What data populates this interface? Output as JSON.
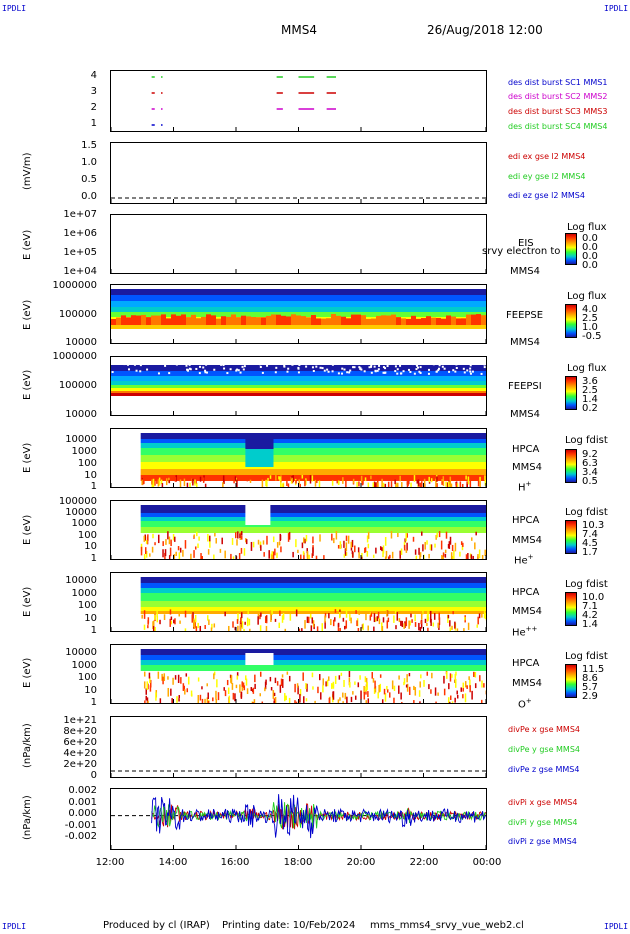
{
  "corners": {
    "tl": "IPDLI",
    "tr": "IPDLI",
    "bl": "IPDLI",
    "br": "IPDLI"
  },
  "header": {
    "title": "MMS4",
    "datetime": "26/Aug/2018 12:00"
  },
  "footer": {
    "produced": "Produced by cl (IRAP)",
    "printing": "Printing date: 10/Feb/2024",
    "file": "mms_mms4_srvy_vue_web2.cl"
  },
  "colors": {
    "red": "#cc0000",
    "green": "#22cc22",
    "blue": "#0000cc",
    "magenta": "#cc00cc",
    "spec_red": "#cc0000",
    "spec_blue": "#1a1aa0"
  },
  "chart_data": [
    {
      "type": "scatter",
      "id": "burst",
      "yticks": [
        "4",
        "3",
        "2",
        "1"
      ],
      "legend": [
        {
          "text": "des dist burst SC1 MMS1",
          "color": "#0000cc"
        },
        {
          "text": "des dist burst SC2 MMS2",
          "color": "#cc00cc"
        },
        {
          "text": "des dist burst SC3 MMS3",
          "color": "#cc0000"
        },
        {
          "text": "des dist burst SC4 MMS4",
          "color": "#22cc22"
        }
      ],
      "segments": [
        {
          "sc": 4,
          "t": [
            13.3,
            13.4,
            13.6,
            13.65,
            17.3,
            17.5,
            18.0,
            18.5,
            18.9,
            19.2
          ]
        },
        {
          "sc": 3,
          "t": [
            13.3,
            13.4,
            13.6,
            13.65,
            17.3,
            17.5,
            18.0,
            18.5,
            18.9,
            19.2
          ]
        },
        {
          "sc": 2,
          "t": [
            13.3,
            13.4,
            13.6,
            13.65,
            17.3,
            17.5,
            18.0,
            18.5,
            18.9,
            19.2
          ]
        },
        {
          "sc": 1,
          "t": [
            13.3,
            13.4,
            13.6,
            13.65
          ]
        }
      ]
    },
    {
      "type": "line",
      "id": "edi",
      "ylabel": "(mV/m)",
      "yticks": [
        "1.5",
        "1.0",
        "0.5",
        "0.0"
      ],
      "ylim": [
        0,
        1.5
      ],
      "legend": [
        {
          "text": "edi ex gse l2 MMS4",
          "color": "#cc0000"
        },
        {
          "text": "edi ey gse l2 MMS4",
          "color": "#22cc22"
        },
        {
          "text": "edi ez gse l2 MMS4",
          "color": "#0000cc"
        }
      ]
    },
    {
      "type": "heatmap",
      "id": "eis",
      "ylabel": "E (eV)",
      "yticks": [
        "1e+07",
        "1e+06",
        "1e+05",
        "1e+04"
      ],
      "instrument": [
        "EIS",
        "MMS4"
      ],
      "overlay": "srvy electron to",
      "cbar_title": "Log flux",
      "cbar_values": [
        "0.0",
        "0.0",
        "0.0",
        "0.0"
      ]
    },
    {
      "type": "heatmap",
      "id": "feepse",
      "ylabel": "E (eV)",
      "yticks": [
        "1000000",
        "100000",
        "10000"
      ],
      "instrument": [
        "FEEPSE",
        "MMS4"
      ],
      "cbar_title": "Log flux",
      "cbar_values": [
        "4.0",
        "2.5",
        "1.0",
        "-0.5"
      ]
    },
    {
      "type": "heatmap",
      "id": "feepsi",
      "ylabel": "E (eV)",
      "yticks": [
        "1000000",
        "100000",
        "10000"
      ],
      "instrument": [
        "FEEPSI",
        "MMS4"
      ],
      "cbar_title": "Log flux",
      "cbar_values": [
        "3.6",
        "2.5",
        "1.4",
        "0.2"
      ]
    },
    {
      "type": "heatmap",
      "id": "hpca_h",
      "ylabel": "E (eV)",
      "yticks": [
        "10000",
        "1000",
        "100",
        "10",
        "1"
      ],
      "instrument": [
        "HPCA",
        "MMS4"
      ],
      "species": "H",
      "species_sup": "+",
      "cbar_title": "Log fdist",
      "cbar_values": [
        "9.2",
        "6.3",
        "3.4",
        "0.5"
      ]
    },
    {
      "type": "heatmap",
      "id": "hpca_he1",
      "ylabel": "E (eV)",
      "yticks": [
        "100000",
        "10000",
        "1000",
        "100",
        "10",
        "1"
      ],
      "instrument": [
        "HPCA",
        "MMS4"
      ],
      "species": "He",
      "species_sup": "+",
      "cbar_title": "Log fdist",
      "cbar_values": [
        "10.3",
        "7.4",
        "4.5",
        "1.7"
      ]
    },
    {
      "type": "heatmap",
      "id": "hpca_he2",
      "ylabel": "E (eV)",
      "yticks": [
        "10000",
        "1000",
        "100",
        "10",
        "1"
      ],
      "instrument": [
        "HPCA",
        "MMS4"
      ],
      "species": "He",
      "species_sup": "++",
      "cbar_title": "Log fdist",
      "cbar_values": [
        "10.0",
        "7.1",
        "4.2",
        "1.4"
      ]
    },
    {
      "type": "heatmap",
      "id": "hpca_o",
      "ylabel": "E (eV)",
      "yticks": [
        "10000",
        "1000",
        "100",
        "10",
        "1"
      ],
      "instrument": [
        "HPCA",
        "MMS4"
      ],
      "species": "O",
      "species_sup": "+",
      "cbar_title": "Log fdist",
      "cbar_values": [
        "11.5",
        "8.6",
        "5.7",
        "2.9"
      ]
    },
    {
      "type": "line",
      "id": "divpe",
      "ylabel": "(nPa/km)",
      "yticks": [
        "1e+21",
        "8e+20",
        "6e+20",
        "4e+20",
        "2e+20",
        "0"
      ],
      "legend": [
        {
          "text": "divPe x gse MMS4",
          "color": "#cc0000"
        },
        {
          "text": "divPe y gse MMS4",
          "color": "#22cc22"
        },
        {
          "text": "divPe z gse MMS4",
          "color": "#0000cc"
        }
      ]
    },
    {
      "type": "line",
      "id": "divpi",
      "ylabel": "(nPa/km)",
      "yticks": [
        "0.002",
        "0.001",
        "0.000",
        "-0.001",
        "-0.002"
      ],
      "ylim": [
        -0.0025,
        0.002
      ],
      "legend": [
        {
          "text": "divPi x gse MMS4",
          "color": "#cc0000"
        },
        {
          "text": "divPi y gse MMS4",
          "color": "#22cc22"
        },
        {
          "text": "divPi z gse MMS4",
          "color": "#0000cc"
        }
      ]
    }
  ],
  "xaxis": {
    "ticks": [
      "12:00",
      "14:00",
      "16:00",
      "18:00",
      "20:00",
      "22:00",
      "00:00"
    ],
    "range": [
      12,
      24
    ]
  }
}
